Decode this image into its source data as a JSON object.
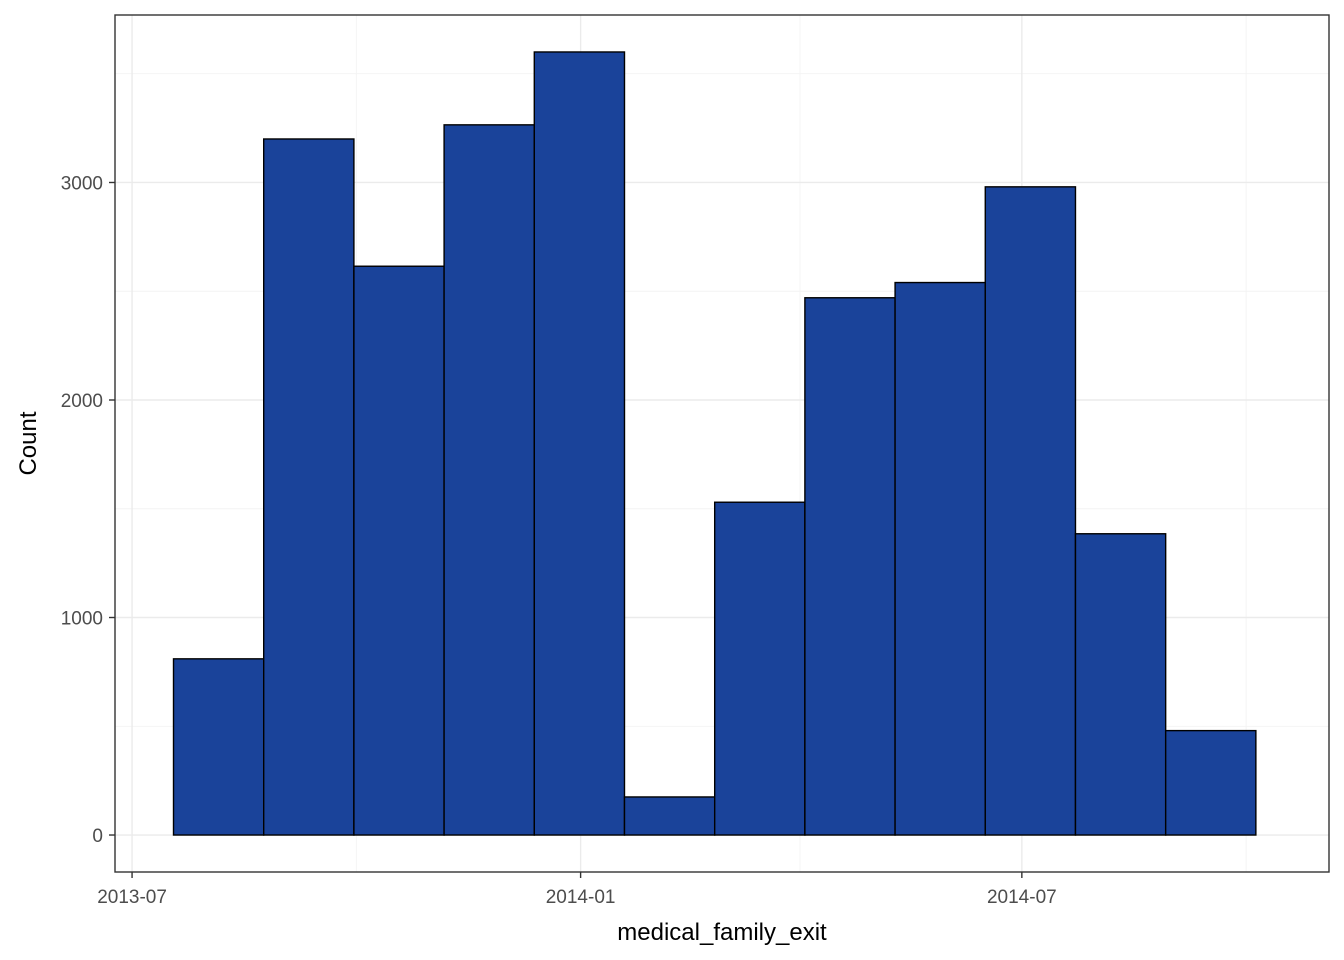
{
  "chart_data": {
    "type": "bar",
    "subtype": "histogram",
    "title": "",
    "xlabel": "medical_family_exit",
    "ylabel": "Count",
    "bar_color": "#1a439a",
    "bar_outline": "#000000",
    "x_axis_type": "date",
    "xlim": [
      "2013-06-24",
      "2014-11-04"
    ],
    "ylim": [
      -170,
      3770
    ],
    "x_ticks": [
      {
        "value": "2013-07-01",
        "label": "2013-07"
      },
      {
        "value": "2014-01-01",
        "label": "2014-01"
      },
      {
        "value": "2014-07-01",
        "label": "2014-07"
      }
    ],
    "x_minor_grid": [
      "2013-10-01",
      "2014-04-01",
      "2014-10-01"
    ],
    "y_ticks": [
      0,
      1000,
      2000,
      3000
    ],
    "y_minor_grid": [
      500,
      1500,
      2500,
      3500
    ],
    "grid": true,
    "legend": "none",
    "bins": [
      {
        "start": "2013-07-18",
        "end": "2013-08-24",
        "count": 810
      },
      {
        "start": "2013-08-24",
        "end": "2013-09-30",
        "count": 3200
      },
      {
        "start": "2013-09-30",
        "end": "2013-11-06",
        "count": 2615
      },
      {
        "start": "2013-11-06",
        "end": "2013-12-13",
        "count": 3265
      },
      {
        "start": "2013-12-13",
        "end": "2014-01-19",
        "count": 3600
      },
      {
        "start": "2014-01-19",
        "end": "2014-02-25",
        "count": 175
      },
      {
        "start": "2014-02-25",
        "end": "2014-04-03",
        "count": 1530
      },
      {
        "start": "2014-04-03",
        "end": "2014-05-10",
        "count": 2470
      },
      {
        "start": "2014-05-10",
        "end": "2014-06-16",
        "count": 2540
      },
      {
        "start": "2014-06-16",
        "end": "2014-07-23",
        "count": 2980
      },
      {
        "start": "2014-07-23",
        "end": "2014-08-29",
        "count": 1385
      },
      {
        "start": "2014-08-29",
        "end": "2014-10-05",
        "count": 480
      }
    ]
  }
}
